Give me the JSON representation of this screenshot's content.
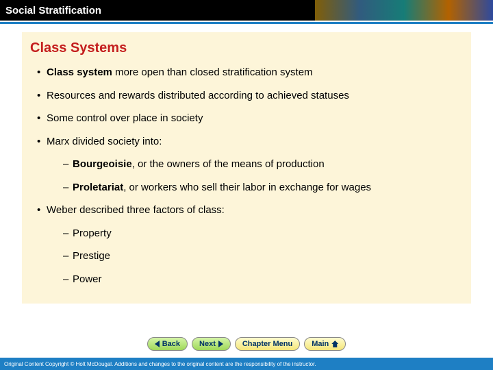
{
  "header": {
    "title": "Social Stratification"
  },
  "slide": {
    "title": "Class Systems",
    "bullets": [
      {
        "pre": "",
        "bold": "Class system",
        "post": " more open than closed stratification system"
      },
      {
        "pre": "Resources and rewards distributed according to achieved statuses",
        "bold": "",
        "post": ""
      },
      {
        "pre": "Some control over place in society",
        "bold": "",
        "post": ""
      },
      {
        "pre": "Marx divided society into:",
        "bold": "",
        "post": "",
        "sub": [
          {
            "bold": "Bourgeoisie",
            "post": ", or the owners of the means of production"
          },
          {
            "bold": "Proletariat",
            "post": ", or workers who sell their labor in exchange for wages"
          }
        ]
      },
      {
        "pre": "Weber described three factors of class:",
        "bold": "",
        "post": "",
        "sub": [
          {
            "bold": "",
            "post": "Property"
          },
          {
            "bold": "",
            "post": "Prestige"
          },
          {
            "bold": "",
            "post": "Power"
          }
        ]
      }
    ]
  },
  "nav": {
    "back": "Back",
    "next": "Next",
    "menu": "Chapter Menu",
    "main": "Main"
  },
  "footer": "Original Content Copyright © Holt McDougal. Additions and changes to the original content are the responsibility of the instructor."
}
